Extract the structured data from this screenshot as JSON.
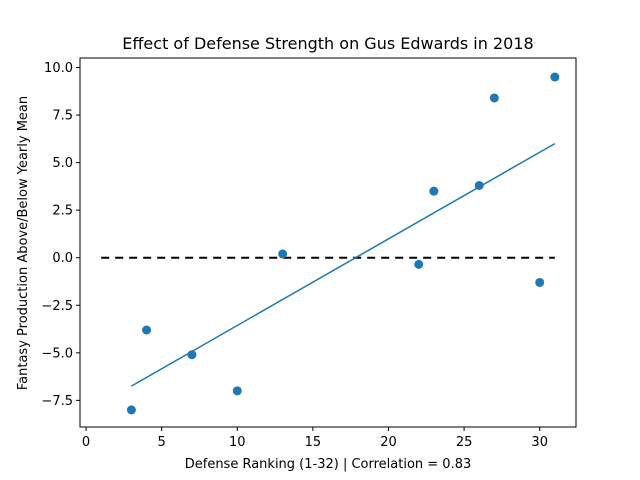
{
  "chart_data": {
    "type": "scatter",
    "title": "Effect of Defense Strength on Gus Edwards in 2018",
    "xlabel": "Defense Ranking (1-32) | Correlation = 0.83",
    "ylabel": "Fantasy Production Above/Below Yearly Mean",
    "xlim": [
      -0.4,
      32.4
    ],
    "ylim": [
      -8.9,
      10.5
    ],
    "x_ticks": [
      0,
      5,
      10,
      15,
      20,
      25,
      30
    ],
    "x_tick_labels": [
      "0",
      "5",
      "10",
      "15",
      "20",
      "25",
      "30"
    ],
    "y_ticks": [
      -7.5,
      -5.0,
      -2.5,
      0.0,
      2.5,
      5.0,
      7.5,
      10.0
    ],
    "y_tick_labels": [
      "−7.5",
      "−5.0",
      "−2.5",
      "0.0",
      "2.5",
      "5.0",
      "7.5",
      "10.0"
    ],
    "grid": false,
    "points": [
      {
        "x": 3,
        "y": -8.0
      },
      {
        "x": 4,
        "y": -3.8
      },
      {
        "x": 7,
        "y": -5.1
      },
      {
        "x": 10,
        "y": -7.0
      },
      {
        "x": 13,
        "y": 0.2
      },
      {
        "x": 22,
        "y": -0.35
      },
      {
        "x": 23,
        "y": 3.5
      },
      {
        "x": 26,
        "y": 3.8
      },
      {
        "x": 27,
        "y": 8.4
      },
      {
        "x": 30,
        "y": -1.3
      },
      {
        "x": 31,
        "y": 9.5
      }
    ],
    "trend_line": {
      "x": [
        3,
        31
      ],
      "y": [
        -6.75,
        6.0
      ]
    },
    "reference_line": {
      "x": [
        1,
        31
      ],
      "y": [
        0,
        0
      ],
      "style": "dashed"
    },
    "colors": {
      "points": "#1f77b4",
      "trend": "#1f77b4",
      "reference": "#000000"
    }
  }
}
